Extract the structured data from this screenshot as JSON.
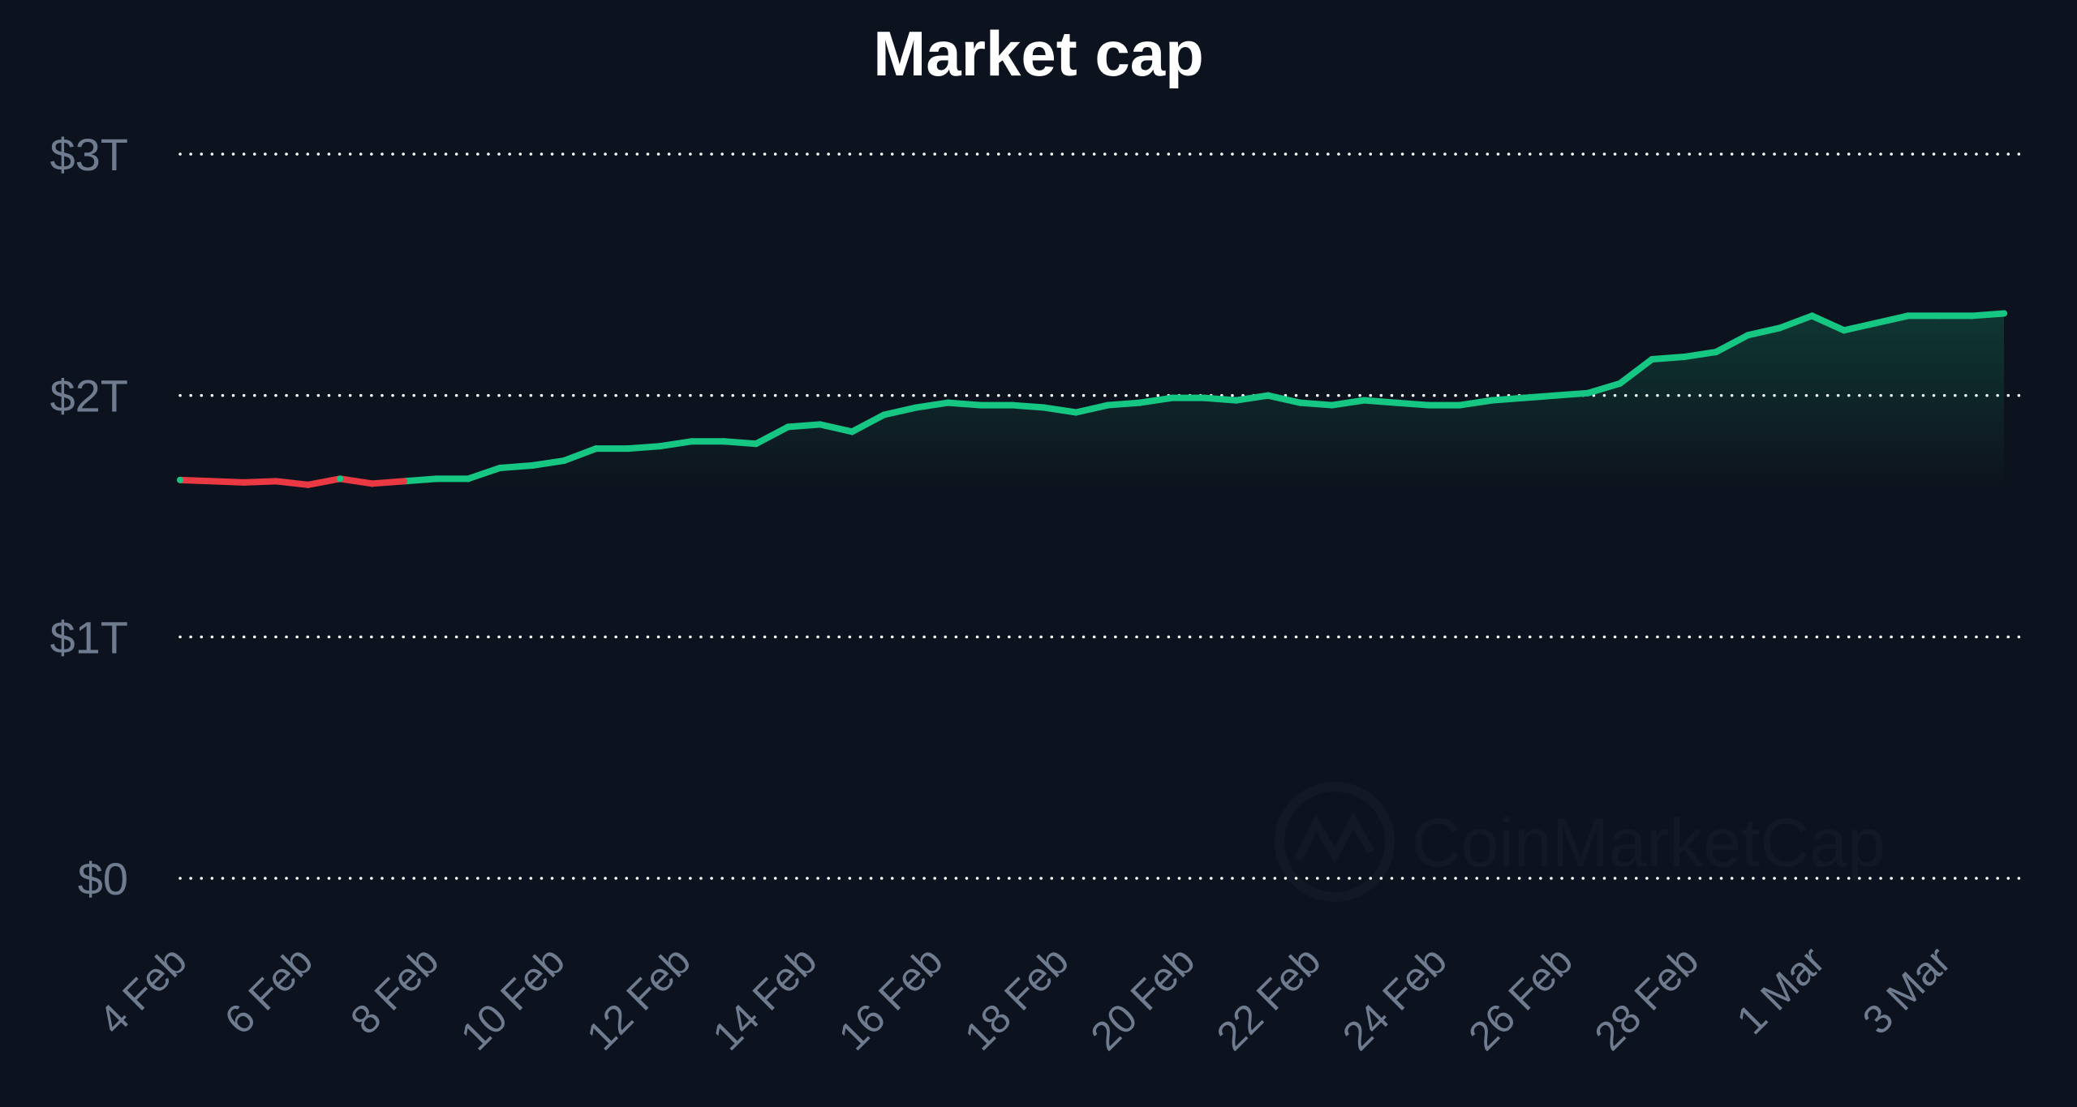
{
  "chart_data": {
    "type": "line",
    "title": "Market cap",
    "xlabel": "",
    "ylabel": "",
    "x_tick_labels": [
      "4 Feb",
      "6 Feb",
      "8 Feb",
      "10 Feb",
      "12 Feb",
      "14 Feb",
      "16 Feb",
      "18 Feb",
      "20 Feb",
      "22 Feb",
      "24 Feb",
      "26 Feb",
      "28 Feb",
      "1 Mar",
      "3 Mar"
    ],
    "y_tick_labels": [
      "$0",
      "$1T",
      "$2T",
      "$3T"
    ],
    "ylim": [
      0,
      3
    ],
    "y_unit": "trillion USD",
    "grid": true,
    "grid_style": "dotted horizontal",
    "colors": {
      "background": "#0d131e",
      "line_up": "#16c784",
      "line_down": "#ea3943",
      "grid": "#ffffff",
      "tick_text": "#6f7c90",
      "title": "#ffffff"
    },
    "x": [
      "4 Feb",
      "4.5 Feb",
      "5 Feb",
      "5.5 Feb",
      "6 Feb",
      "6.5 Feb",
      "7 Feb",
      "7.5 Feb",
      "8 Feb",
      "8.5 Feb",
      "9 Feb",
      "9.5 Feb",
      "10 Feb",
      "10.5 Feb",
      "11 Feb",
      "11.5 Feb",
      "12 Feb",
      "12.5 Feb",
      "13 Feb",
      "13.5 Feb",
      "14 Feb",
      "14.5 Feb",
      "15 Feb",
      "15.5 Feb",
      "16 Feb",
      "16.5 Feb",
      "17 Feb",
      "17.5 Feb",
      "18 Feb",
      "18.5 Feb",
      "19 Feb",
      "19.5 Feb",
      "20 Feb",
      "20.5 Feb",
      "21 Feb",
      "21.5 Feb",
      "22 Feb",
      "22.5 Feb",
      "23 Feb",
      "23.5 Feb",
      "24 Feb",
      "24.5 Feb",
      "25 Feb",
      "25.5 Feb",
      "26 Feb",
      "26.5 Feb",
      "27 Feb",
      "27.5 Feb",
      "28 Feb",
      "28.5 Feb",
      "29 Feb",
      "29.5 Feb",
      "1 Mar",
      "1.5 Mar",
      "2 Mar",
      "2.5 Mar",
      "3 Mar",
      "3.5 Mar"
    ],
    "series": [
      {
        "values": [
          1.65,
          1.645,
          1.64,
          1.645,
          1.63,
          1.655,
          1.635,
          1.645,
          1.655,
          1.655,
          1.7,
          1.71,
          1.73,
          1.78,
          1.78,
          1.79,
          1.81,
          1.81,
          1.8,
          1.87,
          1.88,
          1.85,
          1.92,
          1.95,
          1.97,
          1.96,
          1.96,
          1.95,
          1.93,
          1.96,
          1.97,
          1.99,
          1.99,
          1.98,
          2.0,
          1.97,
          1.96,
          1.98,
          1.97,
          1.96,
          1.96,
          1.98,
          1.99,
          2.0,
          2.01,
          2.05,
          2.15,
          2.16,
          2.18,
          2.25,
          2.28,
          2.33,
          2.27,
          2.3,
          2.33,
          2.33,
          2.33,
          2.34
        ]
      }
    ],
    "watermark": "CoinMarketCap"
  }
}
